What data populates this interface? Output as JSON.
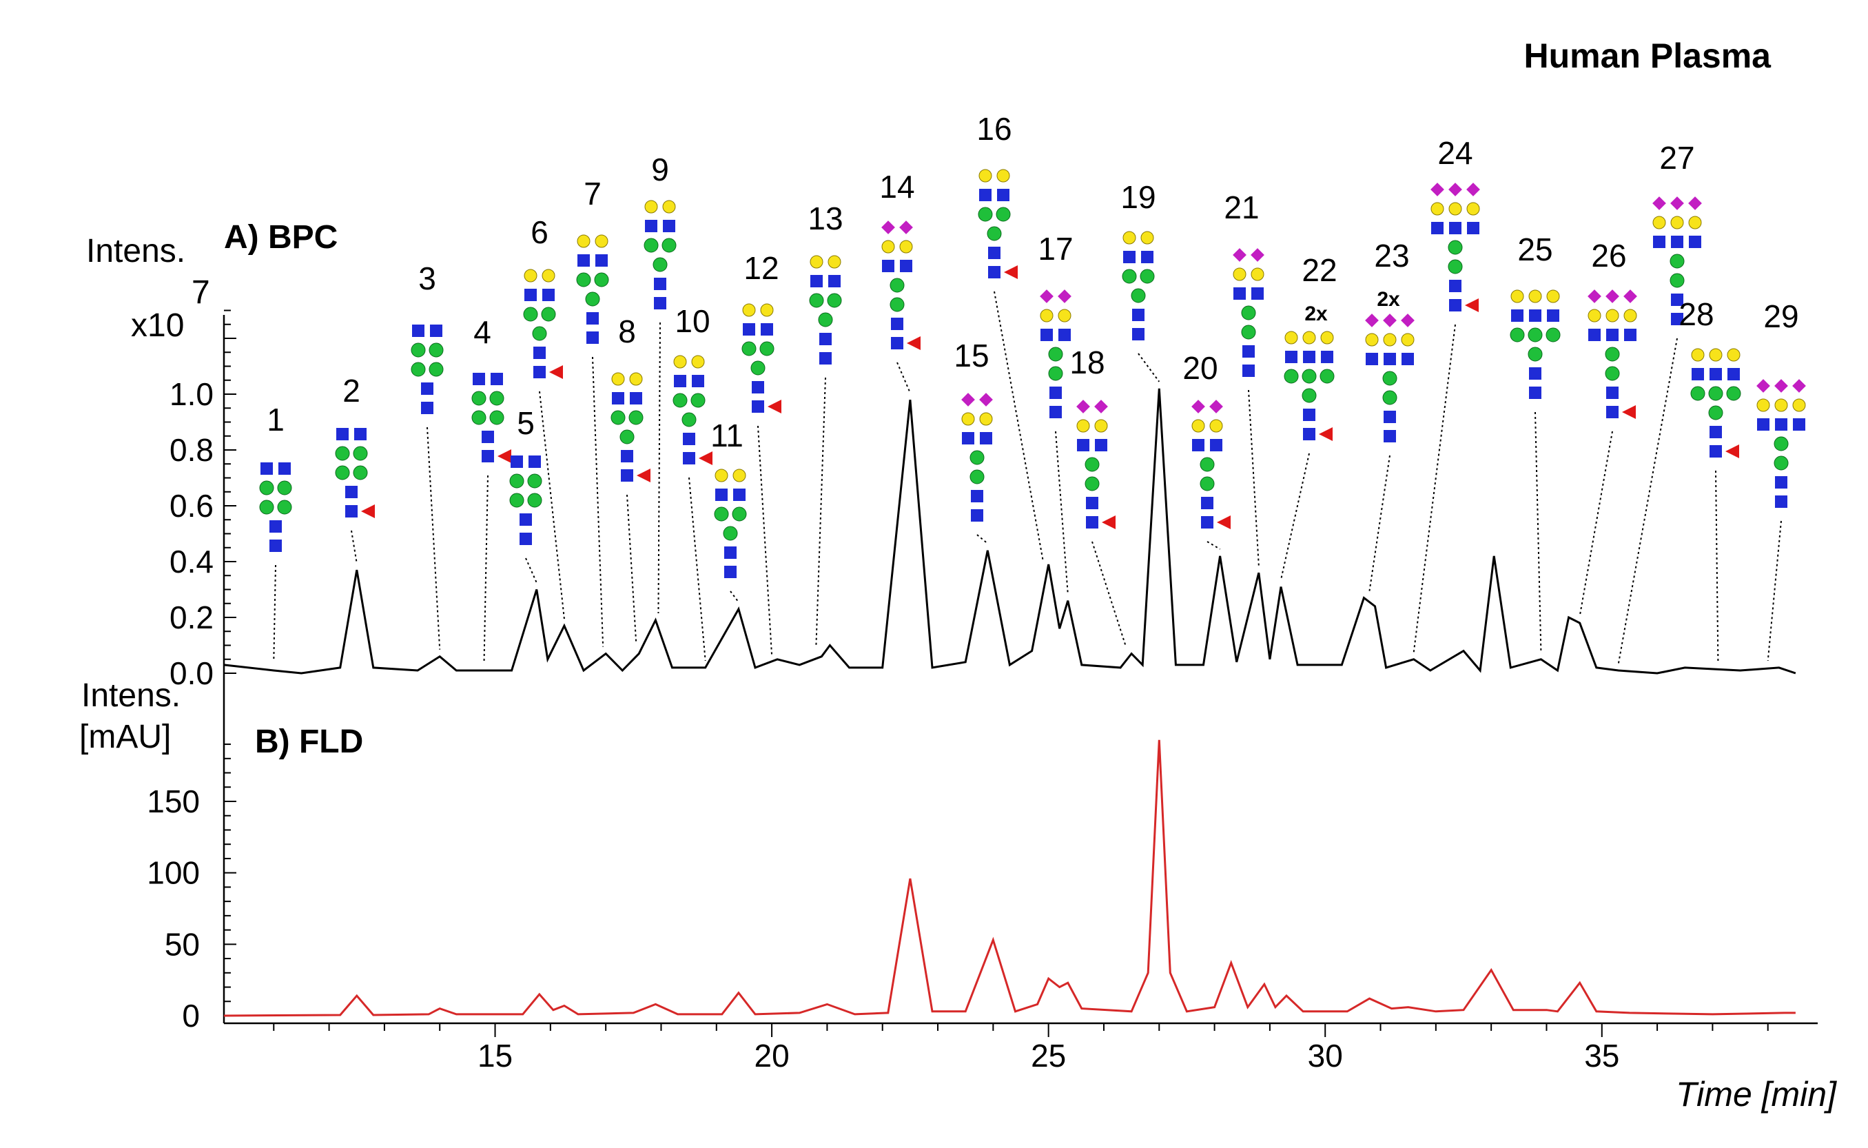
{
  "header": {
    "title": "Human Plasma"
  },
  "chart_data": [
    {
      "type": "line",
      "panel_label": "A) BPC",
      "ylabel_line1": "Intens.",
      "ylabel_line2": "x10",
      "ylabel_exponent": "7",
      "ylim": [
        0,
        1.3
      ],
      "yticks": [
        "0.0",
        "0.2",
        "0.4",
        "0.6",
        "0.8",
        "1.0"
      ],
      "ytick_values": [
        0,
        0.2,
        0.4,
        0.6,
        0.8,
        1.0
      ],
      "xlim": [
        10.1,
        38.9
      ],
      "grid": false,
      "series": [
        {
          "color": "#000000",
          "points": [
            [
              10.1,
              0.03
            ],
            [
              11.0,
              0.01
            ],
            [
              11.5,
              0.0
            ],
            [
              12.2,
              0.02
            ],
            [
              12.5,
              0.37
            ],
            [
              12.8,
              0.02
            ],
            [
              13.6,
              0.01
            ],
            [
              14.0,
              0.06
            ],
            [
              14.3,
              0.01
            ],
            [
              14.8,
              0.01
            ],
            [
              15.3,
              0.01
            ],
            [
              15.75,
              0.3
            ],
            [
              15.95,
              0.05
            ],
            [
              16.25,
              0.17
            ],
            [
              16.6,
              0.01
            ],
            [
              17.0,
              0.07
            ],
            [
              17.3,
              0.01
            ],
            [
              17.6,
              0.07
            ],
            [
              17.9,
              0.19
            ],
            [
              18.2,
              0.02
            ],
            [
              18.8,
              0.02
            ],
            [
              19.4,
              0.23
            ],
            [
              19.7,
              0.02
            ],
            [
              20.1,
              0.05
            ],
            [
              20.5,
              0.03
            ],
            [
              20.9,
              0.06
            ],
            [
              21.05,
              0.1
            ],
            [
              21.4,
              0.02
            ],
            [
              22.0,
              0.02
            ],
            [
              22.5,
              0.98
            ],
            [
              22.9,
              0.02
            ],
            [
              23.5,
              0.04
            ],
            [
              23.9,
              0.44
            ],
            [
              24.3,
              0.03
            ],
            [
              24.7,
              0.08
            ],
            [
              25.0,
              0.39
            ],
            [
              25.2,
              0.16
            ],
            [
              25.35,
              0.26
            ],
            [
              25.6,
              0.03
            ],
            [
              26.3,
              0.02
            ],
            [
              26.5,
              0.07
            ],
            [
              26.7,
              0.03
            ],
            [
              27.0,
              1.02
            ],
            [
              27.3,
              0.03
            ],
            [
              27.8,
              0.03
            ],
            [
              28.1,
              0.42
            ],
            [
              28.4,
              0.04
            ],
            [
              28.8,
              0.36
            ],
            [
              29.0,
              0.05
            ],
            [
              29.2,
              0.31
            ],
            [
              29.5,
              0.03
            ],
            [
              30.3,
              0.03
            ],
            [
              30.7,
              0.27
            ],
            [
              30.9,
              0.24
            ],
            [
              31.1,
              0.02
            ],
            [
              31.6,
              0.05
            ],
            [
              31.9,
              0.01
            ],
            [
              32.5,
              0.08
            ],
            [
              32.8,
              0.01
            ],
            [
              33.05,
              0.42
            ],
            [
              33.35,
              0.02
            ],
            [
              33.9,
              0.05
            ],
            [
              34.2,
              0.01
            ],
            [
              34.4,
              0.2
            ],
            [
              34.6,
              0.18
            ],
            [
              34.9,
              0.02
            ],
            [
              35.3,
              0.01
            ],
            [
              36.0,
              0.0
            ],
            [
              36.5,
              0.02
            ],
            [
              37.5,
              0.01
            ],
            [
              38.2,
              0.02
            ],
            [
              38.5,
              0.0
            ]
          ]
        }
      ],
      "annotations": [
        "1",
        "2",
        "3",
        "4",
        "5",
        "6",
        "7",
        "8",
        "9",
        "10",
        "11",
        "12",
        "13",
        "14",
        "15",
        "16",
        "17",
        "18",
        "19",
        "20",
        "21",
        "22",
        "23",
        "24",
        "25",
        "26",
        "27",
        "28",
        "29"
      ],
      "annotation_extra": [
        "2x",
        "2x"
      ]
    },
    {
      "type": "line",
      "panel_label": "B) FLD",
      "ylabel_line1": "Intens.",
      "ylabel_line2": "[mAU]",
      "ylim": [
        0,
        200
      ],
      "yticks": [
        "0",
        "50",
        "100",
        "150"
      ],
      "ytick_values": [
        0,
        50,
        100,
        150
      ],
      "xlim": [
        10.1,
        38.9
      ],
      "xticks": [
        "15",
        "20",
        "25",
        "30",
        "35"
      ],
      "xtick_values": [
        15,
        20,
        25,
        30,
        35
      ],
      "xlabel": "Time [min]",
      "grid": false,
      "series": [
        {
          "color": "#d62828",
          "points": [
            [
              10.1,
              0
            ],
            [
              12.2,
              0.5
            ],
            [
              12.5,
              14
            ],
            [
              12.8,
              0.5
            ],
            [
              13.8,
              1
            ],
            [
              14.0,
              5
            ],
            [
              14.3,
              1
            ],
            [
              15.5,
              1
            ],
            [
              15.8,
              15
            ],
            [
              16.05,
              4
            ],
            [
              16.25,
              7
            ],
            [
              16.5,
              1
            ],
            [
              17.5,
              2
            ],
            [
              17.9,
              8
            ],
            [
              18.3,
              1
            ],
            [
              19.1,
              1
            ],
            [
              19.4,
              16
            ],
            [
              19.7,
              1
            ],
            [
              20.5,
              2
            ],
            [
              21.0,
              8
            ],
            [
              21.5,
              1
            ],
            [
              22.1,
              2
            ],
            [
              22.5,
              96
            ],
            [
              22.9,
              3
            ],
            [
              23.5,
              3
            ],
            [
              24.0,
              53
            ],
            [
              24.4,
              3
            ],
            [
              24.8,
              8
            ],
            [
              25.0,
              26
            ],
            [
              25.2,
              20
            ],
            [
              25.35,
              23
            ],
            [
              25.6,
              5
            ],
            [
              26.5,
              3
            ],
            [
              26.8,
              30
            ],
            [
              27.0,
              193
            ],
            [
              27.2,
              30
            ],
            [
              27.5,
              3
            ],
            [
              28.0,
              6
            ],
            [
              28.3,
              37
            ],
            [
              28.6,
              6
            ],
            [
              28.9,
              22
            ],
            [
              29.1,
              6
            ],
            [
              29.3,
              14
            ],
            [
              29.6,
              3
            ],
            [
              30.4,
              3
            ],
            [
              30.8,
              12
            ],
            [
              31.2,
              5
            ],
            [
              31.5,
              6
            ],
            [
              32.0,
              3
            ],
            [
              32.5,
              4
            ],
            [
              33.0,
              32
            ],
            [
              33.4,
              4
            ],
            [
              34.0,
              4
            ],
            [
              34.2,
              3
            ],
            [
              34.6,
              23
            ],
            [
              34.9,
              3
            ],
            [
              35.5,
              2
            ],
            [
              37.0,
              1
            ],
            [
              38.3,
              2
            ],
            [
              38.5,
              2
            ]
          ]
        }
      ]
    }
  ]
}
